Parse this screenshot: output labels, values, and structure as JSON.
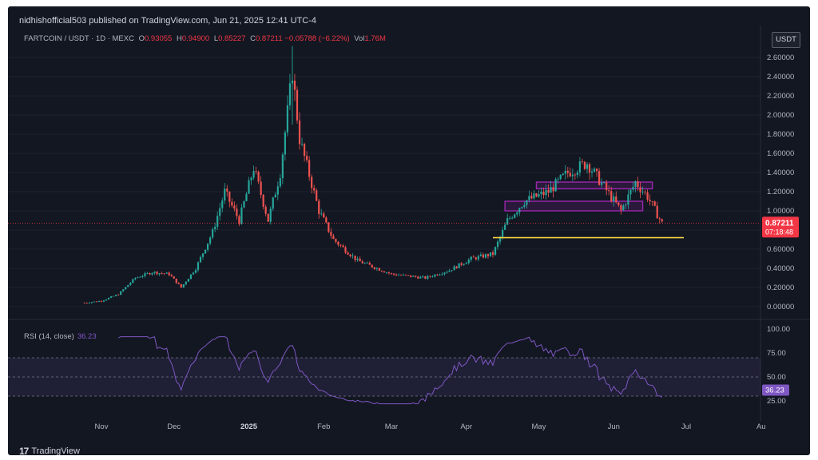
{
  "header": {
    "published": "nidhishofficial503 published on TradingView.com, Jun 21, 2025 12:41 UTC-4",
    "symbol": "FARTCOIN / USDT · 1D · MEXC",
    "ohlc": {
      "o_label": "O",
      "o": "0.93055",
      "h_label": "H",
      "h": "0.94900",
      "l_label": "L",
      "l": "0.85227",
      "c_label": "C",
      "c": "0.87211",
      "change": "−0.05788 (−6.22%)",
      "vol_label": "Vol",
      "vol": "1.76M"
    },
    "currency_button": "USDT"
  },
  "colors": {
    "background": "#131722",
    "up": "#26a69a",
    "down": "#ef5350",
    "price_line": "#f23645",
    "support": "#f5d442",
    "zone": "#9c27b0",
    "rsi": "#7e57c2"
  },
  "price_axis": {
    "ticks": [
      "2.60000",
      "2.40000",
      "2.20000",
      "2.00000",
      "1.80000",
      "1.60000",
      "1.40000",
      "1.20000",
      "1.00000",
      "0.80000",
      "0.60000",
      "0.40000",
      "0.20000",
      "0.00000"
    ],
    "last_price": "0.87211",
    "countdown": "07:18:48"
  },
  "rsi": {
    "label": "RSI (14, close)",
    "value": "36.23",
    "ticks": [
      "100.00",
      "75.00",
      "50.00",
      "25.00"
    ],
    "bands": [
      70,
      50,
      30
    ]
  },
  "time_axis": {
    "labels": [
      "Nov",
      "Dec",
      "2025",
      "Feb",
      "Mar",
      "Apr",
      "May",
      "Jun",
      "Jul",
      "Au"
    ]
  },
  "brand": {
    "name": "TradingView",
    "logo": "17"
  },
  "chart_data": {
    "type": "candlestick",
    "series_approx_close": [
      {
        "date": "2024-10-25",
        "close": 0.04
      },
      {
        "date": "2024-11-01",
        "close": 0.06
      },
      {
        "date": "2024-11-08",
        "close": 0.13
      },
      {
        "date": "2024-11-15",
        "close": 0.3
      },
      {
        "date": "2024-11-22",
        "close": 0.36
      },
      {
        "date": "2024-11-29",
        "close": 0.34
      },
      {
        "date": "2024-12-04",
        "close": 0.2
      },
      {
        "date": "2024-12-10",
        "close": 0.4
      },
      {
        "date": "2024-12-17",
        "close": 0.78
      },
      {
        "date": "2024-12-22",
        "close": 1.2
      },
      {
        "date": "2024-12-28",
        "close": 0.9
      },
      {
        "date": "2025-01-03",
        "close": 1.45
      },
      {
        "date": "2025-01-09",
        "close": 0.9
      },
      {
        "date": "2025-01-14",
        "close": 1.4
      },
      {
        "date": "2025-01-19",
        "close": 2.45
      },
      {
        "date": "2025-01-22",
        "close": 1.75
      },
      {
        "date": "2025-01-30",
        "close": 1.0
      },
      {
        "date": "2025-02-05",
        "close": 0.7
      },
      {
        "date": "2025-02-15",
        "close": 0.48
      },
      {
        "date": "2025-03-01",
        "close": 0.34
      },
      {
        "date": "2025-03-15",
        "close": 0.3
      },
      {
        "date": "2025-03-25",
        "close": 0.38
      },
      {
        "date": "2025-04-03",
        "close": 0.5
      },
      {
        "date": "2025-04-12",
        "close": 0.55
      },
      {
        "date": "2025-04-18",
        "close": 0.9
      },
      {
        "date": "2025-04-25",
        "close": 1.1
      },
      {
        "date": "2025-05-05",
        "close": 1.2
      },
      {
        "date": "2025-05-13",
        "close": 1.4
      },
      {
        "date": "2025-05-21",
        "close": 1.5
      },
      {
        "date": "2025-05-28",
        "close": 1.25
      },
      {
        "date": "2025-06-04",
        "close": 1.0
      },
      {
        "date": "2025-06-10",
        "close": 1.3
      },
      {
        "date": "2025-06-15",
        "close": 1.15
      },
      {
        "date": "2025-06-21",
        "close": 0.87
      }
    ],
    "support_level": 0.72,
    "zones": [
      {
        "low": 1.23,
        "high": 1.3,
        "from": "2025-04-30",
        "to": "2025-06-17"
      },
      {
        "low": 1.0,
        "high": 1.1,
        "from": "2025-04-17",
        "to": "2025-06-13"
      }
    ],
    "ylim": [
      0,
      2.75
    ]
  }
}
